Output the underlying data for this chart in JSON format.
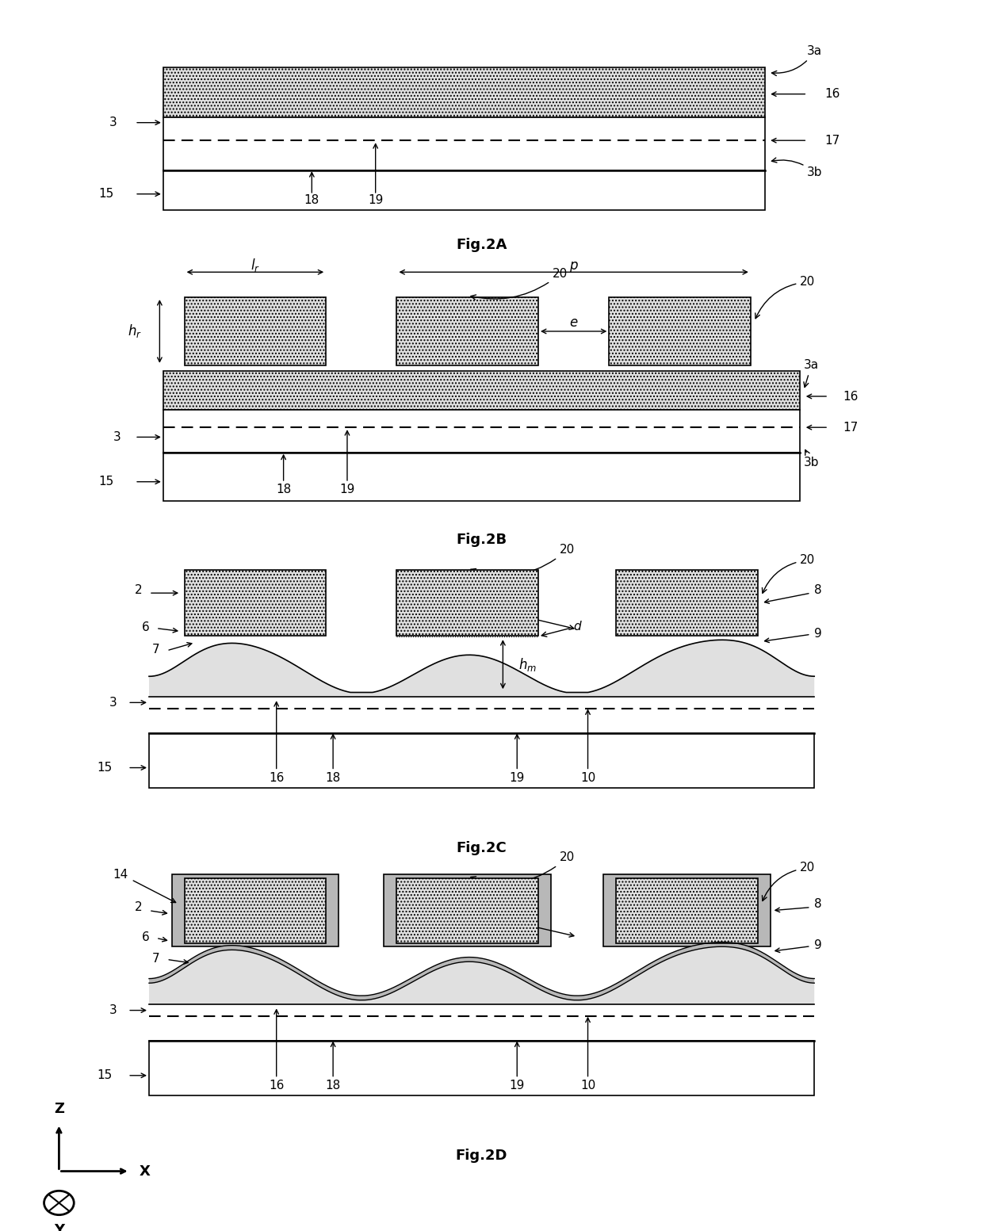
{
  "fig_width": 12.4,
  "fig_height": 15.53,
  "bg_color": "#ffffff",
  "hatch_color": "#888888",
  "dot_fill": "#e8e8e8",
  "gray_fill": "#b0b0b0",
  "panel_fig_labels": [
    "Fig.2A",
    "Fig.2B",
    "Fig.2C",
    "Fig.2D"
  ],
  "label_fontsize": 13,
  "annot_fontsize": 11,
  "dim_fontsize": 12
}
